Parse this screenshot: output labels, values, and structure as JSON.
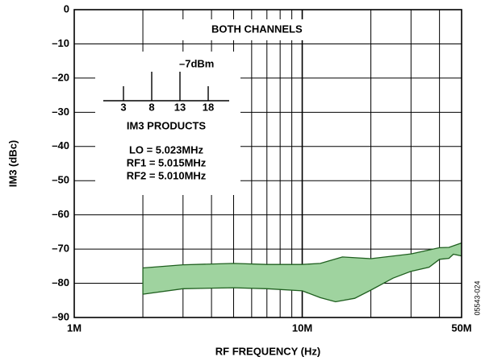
{
  "chart_data": {
    "type": "area",
    "xlabel": "RF FREQUENCY (Hz)",
    "ylabel": "IM3 (dBc)",
    "x_scale": "log",
    "xlim": [
      1000000,
      50000000
    ],
    "ylim": [
      -90,
      0
    ],
    "x_ticks": [
      {
        "value": 1000000,
        "label": "1M"
      },
      {
        "value": 10000000,
        "label": "10M"
      },
      {
        "value": 50000000,
        "label": "50M"
      }
    ],
    "y_ticks": [
      {
        "value": 0,
        "label": "0"
      },
      {
        "value": -10,
        "label": "–10"
      },
      {
        "value": -20,
        "label": "–20"
      },
      {
        "value": -30,
        "label": "–30"
      },
      {
        "value": -40,
        "label": "–40"
      },
      {
        "value": -50,
        "label": "–50"
      },
      {
        "value": -60,
        "label": "–60"
      },
      {
        "value": -70,
        "label": "–70"
      },
      {
        "value": -80,
        "label": "–80"
      },
      {
        "value": -90,
        "label": "–90"
      }
    ],
    "grid": true,
    "fill_color": "#9fd39f",
    "line_color": "#1f5f1f",
    "series": [
      {
        "role": "upper",
        "x": [
          2000000,
          3000000,
          5000000,
          7000000,
          10000000,
          12000000,
          15000000,
          20000000,
          30000000,
          40000000,
          44000000,
          50000000
        ],
        "y": [
          -75.5,
          -74.6,
          -74.2,
          -74.5,
          -74.5,
          -74.2,
          -72.3,
          -72.8,
          -71.4,
          -69.6,
          -69.5,
          -68.2
        ]
      },
      {
        "role": "lower",
        "x": [
          2000000,
          3000000,
          5000000,
          7000000,
          10000000,
          12000000,
          14000000,
          17000000,
          20000000,
          25000000,
          30000000,
          36000000,
          40000000,
          44000000,
          46000000,
          50000000
        ],
        "y": [
          -83.2,
          -81.6,
          -81.3,
          -81.6,
          -82.2,
          -84.2,
          -85.4,
          -84.4,
          -82.0,
          -78.5,
          -76.5,
          -75.3,
          -73.0,
          -72.7,
          -71.5,
          -72.0
        ]
      }
    ],
    "annotations": {
      "channels": "BOTH CHANNELS",
      "power": "–7dBm",
      "tone_labels": [
        "3",
        "8",
        "13",
        "18"
      ],
      "products_label": "IM3 PRODUCTS",
      "lo": "LO = 5.023MHz",
      "rf1": "RF1 = 5.015MHz",
      "rf2": "RF2 = 5.010MHz"
    },
    "figure_id": "05543-024"
  }
}
